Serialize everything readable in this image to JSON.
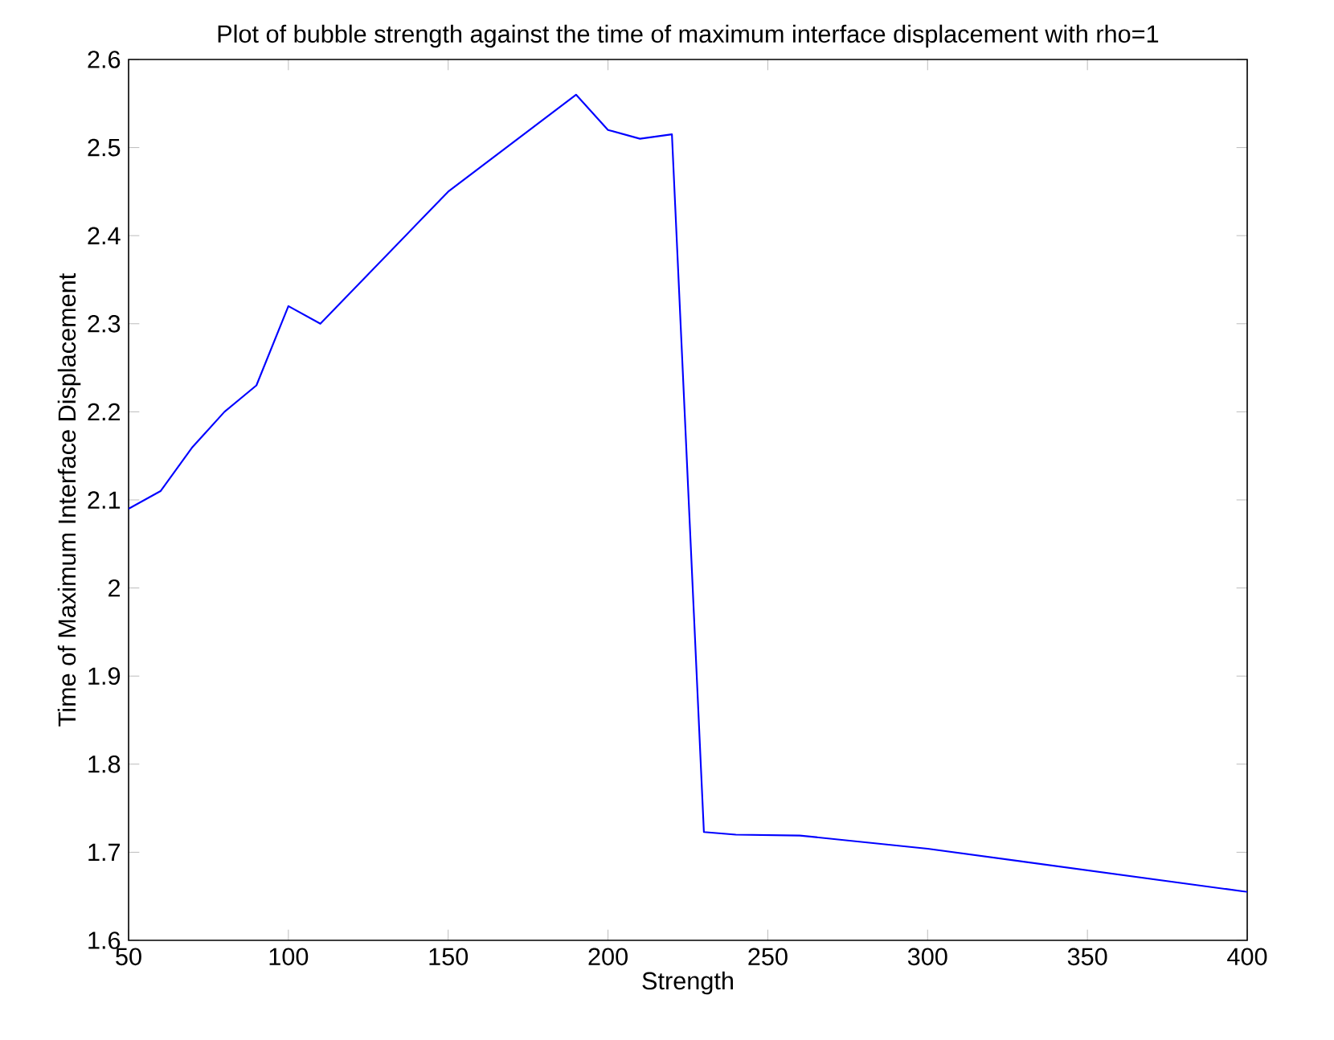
{
  "chart_data": {
    "type": "line",
    "title": "Plot of bubble strength against the time of maximum interface displacement with rho=1",
    "xlabel": "Strength",
    "ylabel": "Time of Maximum Interface Displacement",
    "x": [
      50,
      60,
      70,
      80,
      90,
      100,
      110,
      150,
      190,
      200,
      210,
      220,
      230,
      240,
      260,
      300,
      400
    ],
    "series": [
      {
        "color": "#0000ff",
        "values": [
          2.09,
          2.11,
          2.16,
          2.2,
          2.23,
          2.32,
          2.3,
          2.45,
          2.56,
          2.52,
          2.51,
          2.515,
          1.723,
          1.72,
          1.719,
          1.704,
          1.655
        ]
      }
    ],
    "xlim": [
      50,
      400
    ],
    "xticks": [
      50,
      100,
      150,
      200,
      250,
      300,
      350,
      400
    ],
    "ylim": [
      1.6,
      2.6
    ],
    "yticks": [
      1.6,
      1.7,
      1.8,
      1.9,
      2,
      2.1,
      2.2,
      2.3,
      2.4,
      2.5,
      2.6
    ],
    "grid": false,
    "marker": "none",
    "line_style": "solid"
  }
}
